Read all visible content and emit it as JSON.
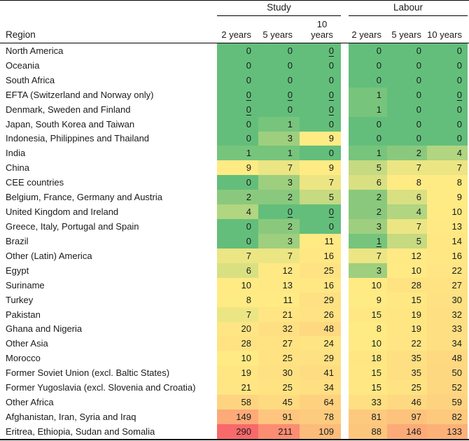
{
  "header": {
    "region_label": "Region",
    "groups": [
      {
        "label": "Study",
        "columns": [
          "2 years",
          "5 years",
          "10 years"
        ]
      },
      {
        "label": "Labour",
        "columns": [
          "2 years",
          "5 years",
          "10 years"
        ]
      }
    ]
  },
  "chart_data": {
    "type": "heatmap",
    "title": "",
    "rows_label": "Region",
    "column_groups": [
      {
        "name": "Study",
        "columns": [
          "2 years",
          "5 years",
          "10 years"
        ]
      },
      {
        "name": "Labour",
        "columns": [
          "2 years",
          "5 years",
          "10 years"
        ]
      }
    ],
    "rows": [
      "North America",
      "Oceania",
      "South Africa",
      "EFTA (Switzerland and Norway only)",
      "Denmark, Sweden and Finland",
      "Japan, South Korea and Taiwan",
      "Indonesia, Philippines and Thailand",
      "India",
      "China",
      "CEE countries",
      "Belgium, France, Germany and Austria",
      "United Kingdom and Ireland",
      "Greece, Italy, Portugal and Spain",
      "Brazil",
      "Other (Latin) America",
      "Egypt",
      "Suriname",
      "Turkey",
      "Pakistan",
      "Ghana and Nigeria",
      "Other Asia",
      "Morocco",
      "Former Soviet Union (excl. Baltic States)",
      "Former Yugoslavia (excl. Slovenia and Croatia)",
      "Other Africa",
      "Afghanistan, Iran, Syria and Iraq",
      "Eritrea, Ethiopia, Sudan and Somalia"
    ],
    "values": [
      [
        0,
        0,
        0,
        0,
        0,
        0
      ],
      [
        0,
        0,
        0,
        0,
        0,
        0
      ],
      [
        0,
        0,
        0,
        0,
        0,
        0
      ],
      [
        0,
        0,
        0,
        1,
        0,
        0
      ],
      [
        0,
        0,
        0,
        1,
        0,
        0
      ],
      [
        0,
        1,
        0,
        0,
        0,
        0
      ],
      [
        0,
        3,
        9,
        0,
        0,
        0
      ],
      [
        1,
        1,
        0,
        1,
        2,
        4
      ],
      [
        9,
        7,
        9,
        5,
        7,
        7
      ],
      [
        0,
        3,
        7,
        6,
        8,
        8
      ],
      [
        2,
        2,
        5,
        2,
        6,
        9
      ],
      [
        4,
        0,
        0,
        2,
        4,
        10
      ],
      [
        0,
        2,
        0,
        3,
        7,
        13
      ],
      [
        0,
        3,
        11,
        1,
        5,
        14
      ],
      [
        7,
        7,
        16,
        7,
        12,
        16
      ],
      [
        6,
        12,
        25,
        3,
        10,
        22
      ],
      [
        10,
        13,
        16,
        10,
        28,
        27
      ],
      [
        8,
        11,
        29,
        9,
        15,
        30
      ],
      [
        7,
        21,
        26,
        15,
        19,
        32
      ],
      [
        20,
        32,
        48,
        8,
        19,
        33
      ],
      [
        28,
        27,
        24,
        10,
        22,
        34
      ],
      [
        10,
        25,
        29,
        18,
        35,
        48
      ],
      [
        19,
        30,
        41,
        15,
        35,
        50
      ],
      [
        21,
        25,
        34,
        15,
        25,
        52
      ],
      [
        58,
        45,
        64,
        33,
        46,
        59
      ],
      [
        149,
        91,
        78,
        81,
        97,
        82
      ],
      [
        290,
        211,
        109,
        88,
        146,
        133
      ]
    ],
    "underlined_cells": [
      [
        0,
        2
      ],
      [
        3,
        0
      ],
      [
        3,
        1
      ],
      [
        3,
        2
      ],
      [
        3,
        5
      ],
      [
        4,
        0
      ],
      [
        4,
        2
      ],
      [
        11,
        1
      ],
      [
        11,
        2
      ],
      [
        13,
        3
      ]
    ],
    "color_scale": {
      "min_value": 0,
      "mid_value": 8,
      "max_value": 290,
      "min_color": "#63BE7B",
      "mid_color": "#FFEB84",
      "max_color": "#F8696B"
    },
    "legend_position": "none",
    "grid": false
  }
}
